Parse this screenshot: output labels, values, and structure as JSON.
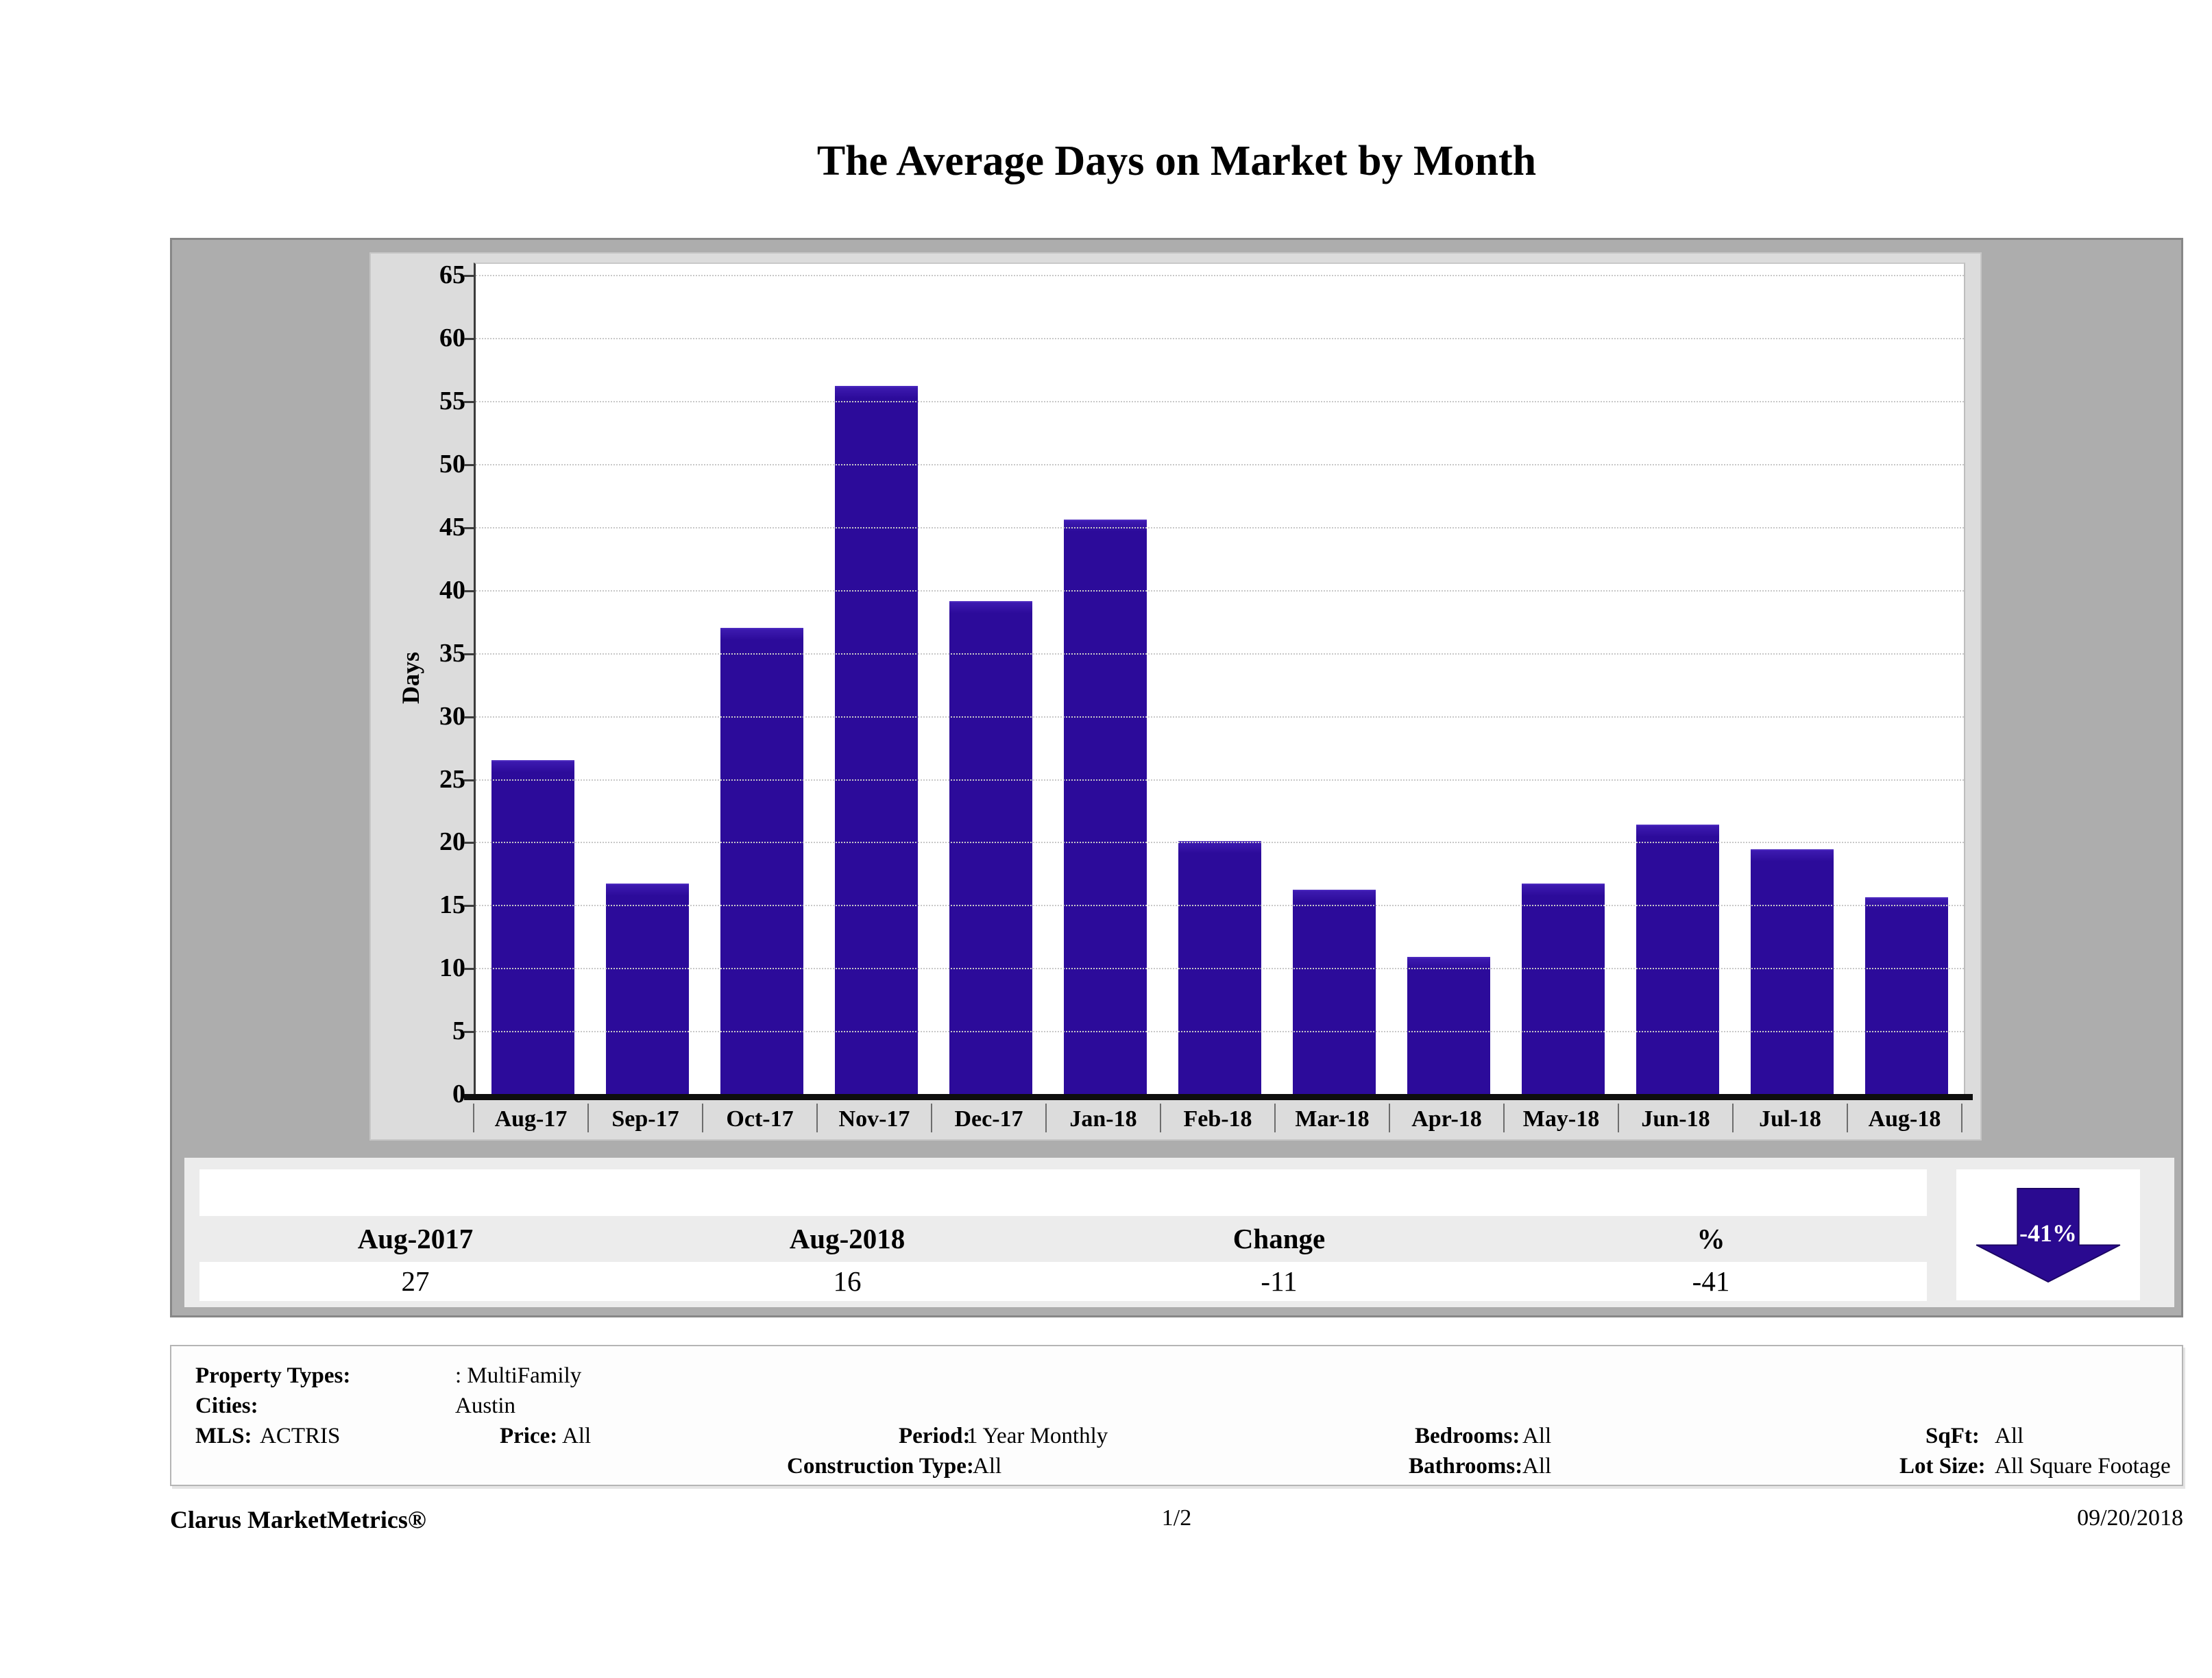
{
  "page": {
    "title": "The Average Days on Market by Month",
    "footer": {
      "brand": "Clarus MarketMetrics®",
      "page_indicator": "1/2",
      "date": "09/20/2018"
    }
  },
  "chart_data": {
    "type": "bar",
    "title": "The Average Days on Market by Month",
    "xlabel": "",
    "ylabel": "Days",
    "ylim": [
      0,
      66
    ],
    "yticks": [
      0,
      5,
      10,
      15,
      20,
      25,
      30,
      35,
      40,
      45,
      50,
      55,
      60,
      65
    ],
    "grid": "horizontal-dotted",
    "legend": "none",
    "categories": [
      "Aug-17",
      "Sep-17",
      "Oct-17",
      "Nov-17",
      "Dec-17",
      "Jan-18",
      "Feb-18",
      "Mar-18",
      "Apr-18",
      "May-18",
      "Jun-18",
      "Jul-18",
      "Aug-18"
    ],
    "values": [
      26.5,
      16.7,
      37.0,
      56.2,
      39.1,
      45.6,
      20.1,
      16.2,
      10.9,
      16.7,
      21.4,
      19.4,
      15.6
    ],
    "bar_color": "#2c0b9a",
    "plot_bg": "#ffffff",
    "panel_bg": "#dcdcdc",
    "outer_bg": "#adadad"
  },
  "summary_table": {
    "columns": [
      "Aug-2017",
      "Aug-2018",
      "Change",
      "%"
    ],
    "values": [
      "27",
      "16",
      "-11",
      "-41"
    ],
    "arrow": {
      "direction": "down",
      "label": "-41%",
      "color": "#2a0a90"
    }
  },
  "filters": {
    "property_types_label": "Property Types:",
    "property_types_value": ": MultiFamily",
    "cities_label": "Cities:",
    "cities_value": "Austin",
    "mls_label": "MLS:",
    "mls_value": "ACTRIS",
    "price_label": "Price:",
    "price_value": "All",
    "period_label": "Period:",
    "period_value": "1 Year Monthly",
    "bedrooms_label": "Bedrooms:",
    "bedrooms_value": "All",
    "sqft_label": "SqFt:",
    "sqft_value": "All",
    "construction_label": "Construction Type:",
    "construction_value": "All",
    "bathrooms_label": "Bathrooms:",
    "bathrooms_value": "All",
    "lot_size_label": "Lot Size:",
    "lot_size_value": "All Square Footage"
  }
}
